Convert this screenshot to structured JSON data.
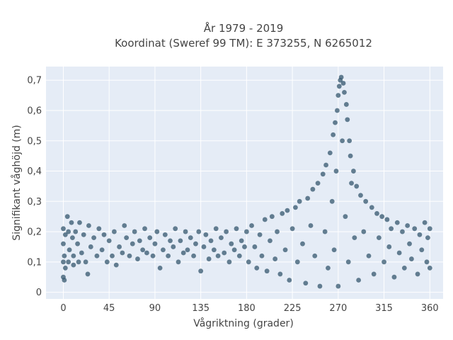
{
  "chart_data": {
    "type": "scatter",
    "title_lines": [
      "År 1979 - 2019",
      "Koordinat (Sweref 99 TM): E 373255, N 6265012"
    ],
    "xlabel": "Vågriktning (grader)",
    "ylabel": "Signifikant våghöjd (m)",
    "xlim": [
      -17,
      373
    ],
    "ylim": [
      -0.022,
      0.745
    ],
    "x_ticks": [
      0,
      45,
      90,
      135,
      180,
      225,
      270,
      315,
      360
    ],
    "x_tick_labels": [
      "0",
      "45",
      "90",
      "135",
      "180",
      "225",
      "270",
      "315",
      "360"
    ],
    "y_ticks": [
      0,
      0.1,
      0.2,
      0.3,
      0.4,
      0.5,
      0.6,
      0.7
    ],
    "y_tick_labels": [
      "0",
      "0,1",
      "0,2",
      "0,3",
      "0,4",
      "0,5",
      "0,6",
      "0,7"
    ],
    "grid": true,
    "marker_color": "#34576d",
    "background_color": "#e5ecf6",
    "series": [
      {
        "points": [
          [
            0,
            0.21
          ],
          [
            0,
            0.16
          ],
          [
            0,
            0.1
          ],
          [
            0,
            0.05
          ],
          [
            1,
            0.12
          ],
          [
            1,
            0.04
          ],
          [
            2,
            0.19
          ],
          [
            2,
            0.08
          ],
          [
            4,
            0.25
          ],
          [
            5,
            0.2
          ],
          [
            5,
            0.1
          ],
          [
            6,
            0.14
          ],
          [
            8,
            0.23
          ],
          [
            9,
            0.18
          ],
          [
            10,
            0.12
          ],
          [
            10,
            0.09
          ],
          [
            12,
            0.2
          ],
          [
            14,
            0.16
          ],
          [
            15,
            0.1
          ],
          [
            16,
            0.23
          ],
          [
            18,
            0.13
          ],
          [
            20,
            0.19
          ],
          [
            22,
            0.1
          ],
          [
            24,
            0.06
          ],
          [
            25,
            0.22
          ],
          [
            27,
            0.15
          ],
          [
            30,
            0.18
          ],
          [
            33,
            0.12
          ],
          [
            35,
            0.21
          ],
          [
            38,
            0.14
          ],
          [
            40,
            0.19
          ],
          [
            43,
            0.1
          ],
          [
            45,
            0.17
          ],
          [
            48,
            0.12
          ],
          [
            50,
            0.2
          ],
          [
            52,
            0.09
          ],
          [
            55,
            0.15
          ],
          [
            58,
            0.13
          ],
          [
            60,
            0.22
          ],
          [
            62,
            0.18
          ],
          [
            65,
            0.12
          ],
          [
            68,
            0.16
          ],
          [
            70,
            0.2
          ],
          [
            73,
            0.11
          ],
          [
            75,
            0.17
          ],
          [
            78,
            0.14
          ],
          [
            80,
            0.21
          ],
          [
            82,
            0.13
          ],
          [
            85,
            0.18
          ],
          [
            88,
            0.12
          ],
          [
            90,
            0.16
          ],
          [
            92,
            0.2
          ],
          [
            95,
            0.08
          ],
          [
            98,
            0.14
          ],
          [
            100,
            0.19
          ],
          [
            103,
            0.12
          ],
          [
            105,
            0.17
          ],
          [
            108,
            0.15
          ],
          [
            110,
            0.21
          ],
          [
            113,
            0.1
          ],
          [
            115,
            0.17
          ],
          [
            118,
            0.13
          ],
          [
            120,
            0.2
          ],
          [
            122,
            0.14
          ],
          [
            125,
            0.18
          ],
          [
            128,
            0.12
          ],
          [
            130,
            0.16
          ],
          [
            133,
            0.2
          ],
          [
            135,
            0.07
          ],
          [
            138,
            0.15
          ],
          [
            140,
            0.19
          ],
          [
            143,
            0.11
          ],
          [
            145,
            0.17
          ],
          [
            148,
            0.14
          ],
          [
            150,
            0.21
          ],
          [
            152,
            0.12
          ],
          [
            155,
            0.18
          ],
          [
            158,
            0.13
          ],
          [
            160,
            0.2
          ],
          [
            163,
            0.1
          ],
          [
            165,
            0.16
          ],
          [
            168,
            0.14
          ],
          [
            170,
            0.21
          ],
          [
            173,
            0.12
          ],
          [
            175,
            0.17
          ],
          [
            178,
            0.15
          ],
          [
            180,
            0.2
          ],
          [
            182,
            0.1
          ],
          [
            185,
            0.22
          ],
          [
            188,
            0.15
          ],
          [
            190,
            0.08
          ],
          [
            193,
            0.19
          ],
          [
            195,
            0.12
          ],
          [
            198,
            0.24
          ],
          [
            200,
            0.07
          ],
          [
            203,
            0.17
          ],
          [
            205,
            0.25
          ],
          [
            208,
            0.11
          ],
          [
            210,
            0.2
          ],
          [
            213,
            0.06
          ],
          [
            215,
            0.26
          ],
          [
            218,
            0.14
          ],
          [
            220,
            0.27
          ],
          [
            222,
            0.04
          ],
          [
            225,
            0.21
          ],
          [
            228,
            0.28
          ],
          [
            230,
            0.1
          ],
          [
            232,
            0.3
          ],
          [
            235,
            0.16
          ],
          [
            238,
            0.03
          ],
          [
            240,
            0.31
          ],
          [
            243,
            0.22
          ],
          [
            245,
            0.34
          ],
          [
            247,
            0.12
          ],
          [
            250,
            0.36
          ],
          [
            252,
            0.02
          ],
          [
            255,
            0.39
          ],
          [
            257,
            0.2
          ],
          [
            258,
            0.42
          ],
          [
            260,
            0.08
          ],
          [
            262,
            0.46
          ],
          [
            264,
            0.3
          ],
          [
            265,
            0.52
          ],
          [
            266,
            0.14
          ],
          [
            267,
            0.56
          ],
          [
            268,
            0.4
          ],
          [
            269,
            0.6
          ],
          [
            270,
            0.65
          ],
          [
            270,
            0.02
          ],
          [
            271,
            0.68
          ],
          [
            272,
            0.7
          ],
          [
            273,
            0.71
          ],
          [
            274,
            0.5
          ],
          [
            275,
            0.69
          ],
          [
            276,
            0.66
          ],
          [
            277,
            0.25
          ],
          [
            278,
            0.62
          ],
          [
            279,
            0.57
          ],
          [
            280,
            0.1
          ],
          [
            281,
            0.5
          ],
          [
            282,
            0.45
          ],
          [
            283,
            0.36
          ],
          [
            285,
            0.4
          ],
          [
            286,
            0.18
          ],
          [
            288,
            0.35
          ],
          [
            290,
            0.04
          ],
          [
            292,
            0.32
          ],
          [
            295,
            0.2
          ],
          [
            297,
            0.3
          ],
          [
            300,
            0.12
          ],
          [
            303,
            0.28
          ],
          [
            305,
            0.06
          ],
          [
            308,
            0.26
          ],
          [
            310,
            0.18
          ],
          [
            313,
            0.25
          ],
          [
            315,
            0.1
          ],
          [
            318,
            0.24
          ],
          [
            320,
            0.15
          ],
          [
            322,
            0.21
          ],
          [
            325,
            0.05
          ],
          [
            328,
            0.23
          ],
          [
            330,
            0.13
          ],
          [
            333,
            0.2
          ],
          [
            335,
            0.08
          ],
          [
            338,
            0.22
          ],
          [
            340,
            0.16
          ],
          [
            342,
            0.11
          ],
          [
            345,
            0.21
          ],
          [
            348,
            0.06
          ],
          [
            350,
            0.19
          ],
          [
            352,
            0.14
          ],
          [
            355,
            0.23
          ],
          [
            357,
            0.1
          ],
          [
            358,
            0.18
          ],
          [
            360,
            0.21
          ],
          [
            360,
            0.08
          ]
        ]
      }
    ]
  }
}
